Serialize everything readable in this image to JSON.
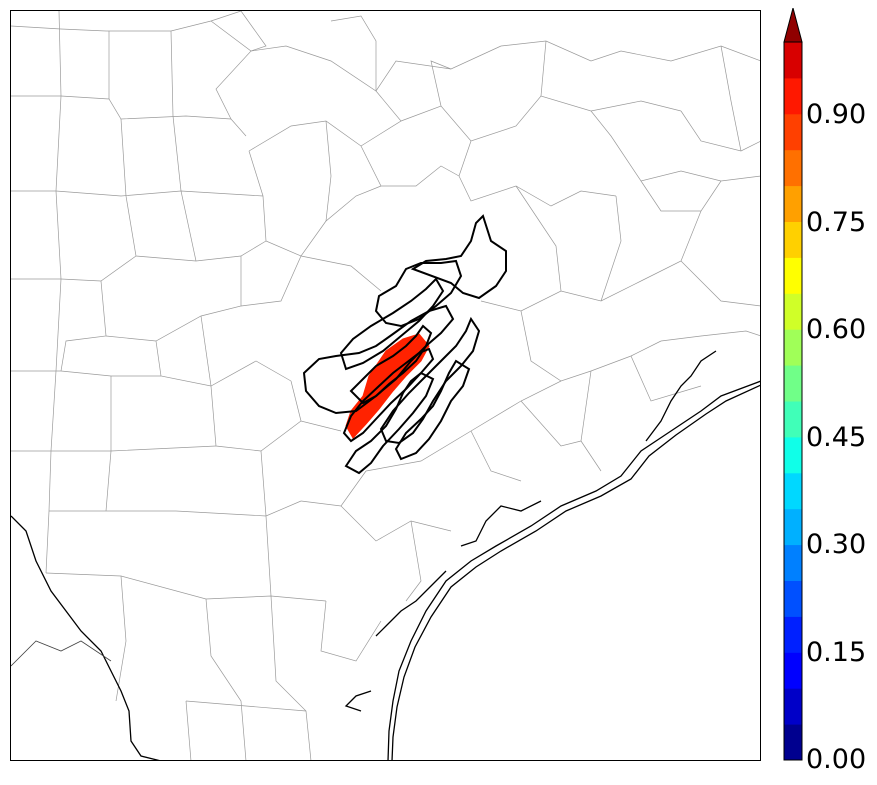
{
  "colorbar": {
    "ticks": [
      "0.00",
      "0.15",
      "0.30",
      "0.45",
      "0.60",
      "0.75",
      "0.90"
    ],
    "levels": 20,
    "extend": "max",
    "colors": [
      "#00008f",
      "#0000c8",
      "#0000ff",
      "#0020ff",
      "#0050ff",
      "#0080ff",
      "#00b0ff",
      "#00d8ff",
      "#10ffe8",
      "#40ffb8",
      "#70ff88",
      "#a0ff58",
      "#d0ff28",
      "#ffff00",
      "#ffd000",
      "#ffa000",
      "#ff7000",
      "#ff4000",
      "#ff1800",
      "#d80000",
      "#900000"
    ]
  },
  "map": {
    "probability_area_color": "#ff2200",
    "contour_color": "#000000",
    "boundary_color": "#9a9a9a",
    "coastline_color": "#000000"
  }
}
